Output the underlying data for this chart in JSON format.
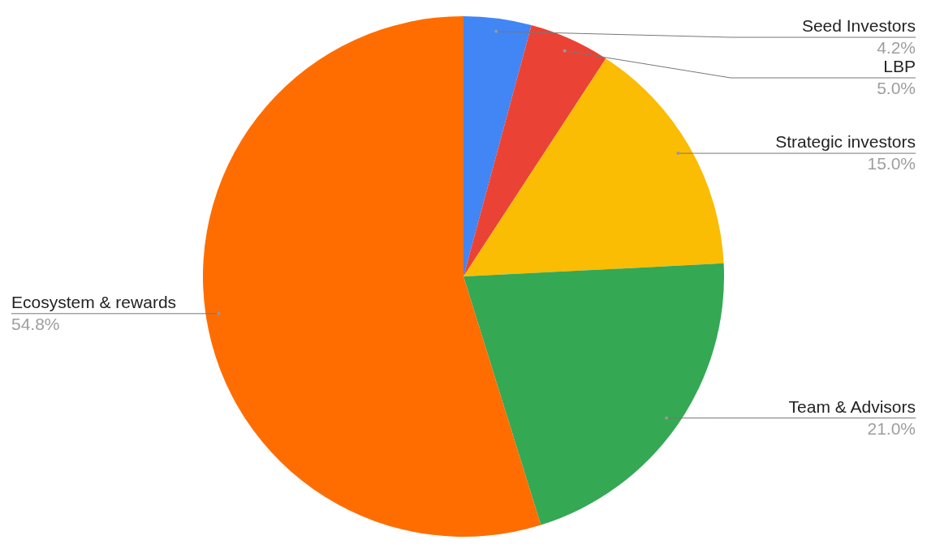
{
  "chart_data": {
    "type": "pie",
    "categories": [
      "Seed Investors",
      "LBP",
      "Strategic investors",
      "Team & Advisors",
      "Ecosystem & rewards"
    ],
    "values": [
      4.2,
      5.0,
      15.0,
      21.0,
      54.8
    ],
    "colors": [
      "#4285f4",
      "#ea4335",
      "#fbbc04",
      "#34a853",
      "#ff6d01"
    ],
    "value_labels": [
      "4.2%",
      "5.0%",
      "15.0%",
      "21.0%",
      "54.8%"
    ]
  }
}
